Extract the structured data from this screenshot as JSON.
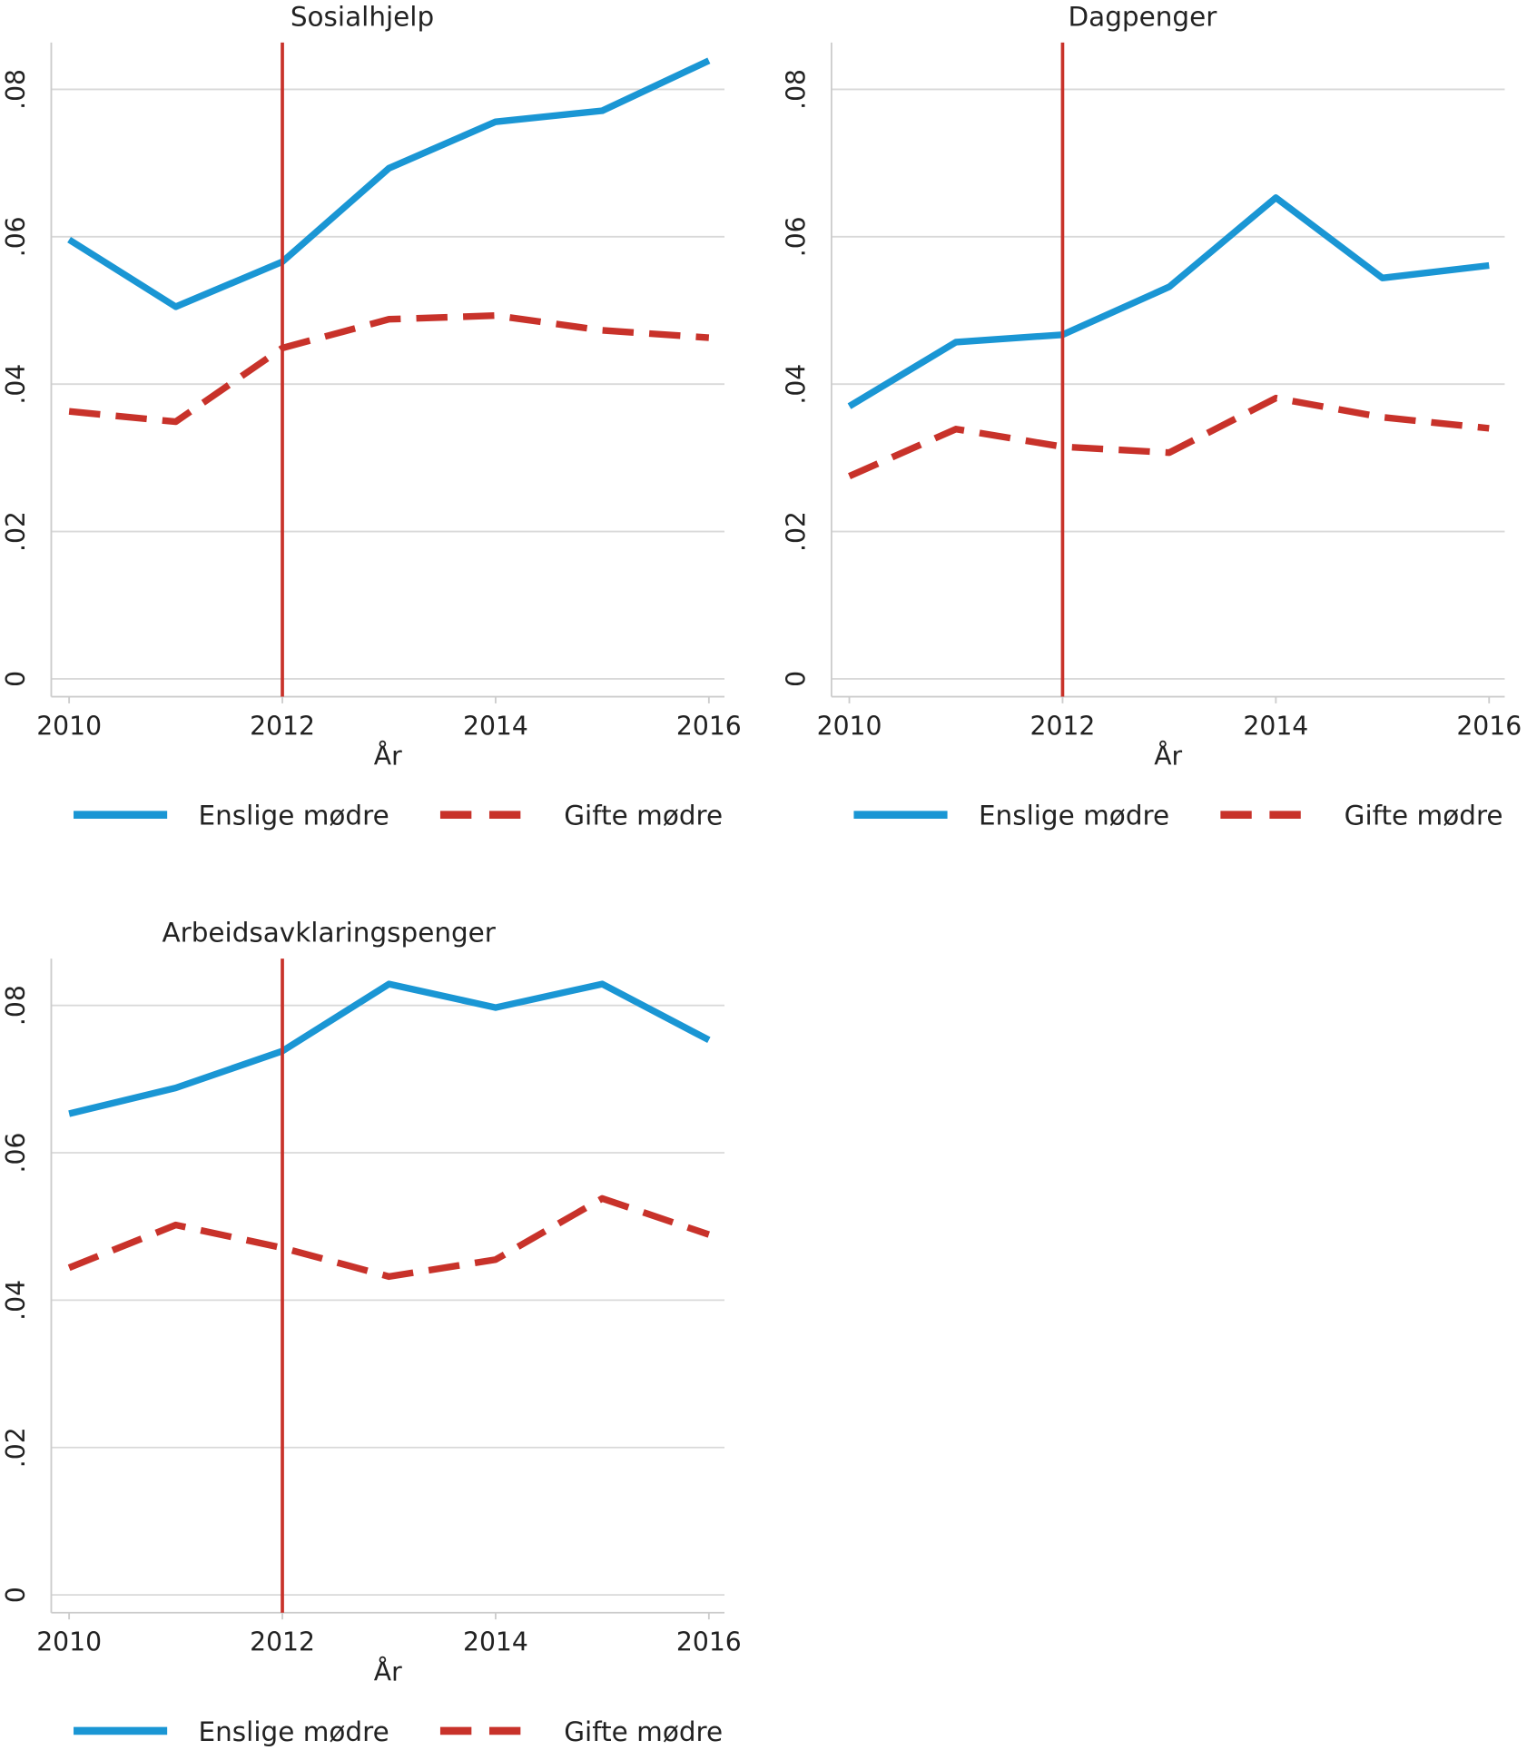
{
  "chart_data": [
    {
      "type": "line",
      "title": "Sosialhjelp",
      "xlabel": "År",
      "ylabel": "",
      "x": [
        2010,
        2011,
        2012,
        2013,
        2014,
        2015,
        2016
      ],
      "xticks": [
        "2010",
        "2012",
        "2014",
        "2016"
      ],
      "yticks": [
        "0",
        ".02",
        ".04",
        ".06",
        ".08"
      ],
      "ylim": [
        0,
        0.085
      ],
      "grid": true,
      "reference_line_x": 2012,
      "legend": "bottom",
      "series": [
        {
          "name": "Enslige mødre",
          "color": "#1a96d4",
          "style": "solid",
          "values": [
            0.0596,
            0.0505,
            0.0566,
            0.0693,
            0.0756,
            0.0771,
            0.0839
          ]
        },
        {
          "name": "Gifte mødre",
          "color": "#c8322a",
          "style": "dashed",
          "values": [
            0.0363,
            0.0349,
            0.0449,
            0.0488,
            0.0493,
            0.0473,
            0.0463
          ]
        }
      ]
    },
    {
      "type": "line",
      "title": "Dagpenger",
      "xlabel": "År",
      "ylabel": "",
      "x": [
        2010,
        2011,
        2012,
        2013,
        2014,
        2015,
        2016
      ],
      "xticks": [
        "2010",
        "2012",
        "2014",
        "2016"
      ],
      "yticks": [
        "0",
        ".02",
        ".04",
        ".06",
        ".08"
      ],
      "ylim": [
        0,
        0.085
      ],
      "grid": true,
      "reference_line_x": 2012,
      "legend": "bottom",
      "series": [
        {
          "name": "Enslige mødre",
          "color": "#1a96d4",
          "style": "solid",
          "values": [
            0.037,
            0.0457,
            0.0467,
            0.0532,
            0.0653,
            0.0544,
            0.0561
          ]
        },
        {
          "name": "Gifte mødre",
          "color": "#c8322a",
          "style": "dashed",
          "values": [
            0.0275,
            0.0339,
            0.0315,
            0.0307,
            0.0381,
            0.0355,
            0.034
          ]
        }
      ]
    },
    {
      "type": "line",
      "title": "Arbeidsavklaringspenger",
      "xlabel": "År",
      "ylabel": "",
      "x": [
        2010,
        2011,
        2012,
        2013,
        2014,
        2015,
        2016
      ],
      "xticks": [
        "2010",
        "2012",
        "2014",
        "2016"
      ],
      "yticks": [
        "0",
        ".02",
        ".04",
        ".06",
        ".08"
      ],
      "ylim": [
        0,
        0.085
      ],
      "grid": true,
      "reference_line_x": 2012,
      "legend": "bottom",
      "series": [
        {
          "name": "Enslige mødre",
          "color": "#1a96d4",
          "style": "solid",
          "values": [
            0.0653,
            0.0688,
            0.0738,
            0.0829,
            0.0797,
            0.0829,
            0.0753
          ]
        },
        {
          "name": "Gifte mødre",
          "color": "#c8322a",
          "style": "dashed",
          "values": [
            0.0444,
            0.0502,
            0.0471,
            0.0432,
            0.0455,
            0.0538,
            0.0489
          ]
        }
      ]
    }
  ],
  "colors": {
    "reference_line": "#c8322a",
    "grid": "#d9d9d9",
    "axis": "#cccccc"
  }
}
